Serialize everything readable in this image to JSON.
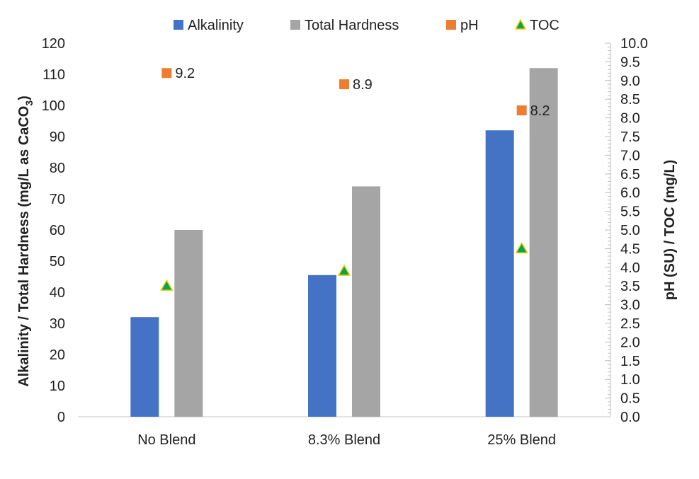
{
  "chart_data": {
    "type": "bar",
    "categories": [
      "No Blend",
      "8.3% Blend",
      "25% Blend"
    ],
    "series": [
      {
        "name": "Alkalinity",
        "kind": "bar",
        "axis": "left",
        "color": "#4472c4",
        "values": [
          32,
          45.5,
          92
        ]
      },
      {
        "name": "Total Hardness",
        "kind": "bar",
        "axis": "left",
        "color": "#a5a5a5",
        "values": [
          60,
          74,
          112
        ]
      },
      {
        "name": "pH",
        "kind": "marker",
        "shape": "square",
        "axis": "right",
        "color": "#ed7d31",
        "values": [
          9.2,
          8.9,
          8.2
        ],
        "labels": [
          "9.2",
          "8.9",
          "8.2"
        ]
      },
      {
        "name": "TOC",
        "kind": "marker",
        "shape": "triangle",
        "axis": "right",
        "color": "#00a651",
        "stroke": "#ffcc00",
        "values": [
          3.5,
          3.9,
          4.5
        ]
      }
    ],
    "ylabel_parts": [
      "Alkalinity / Total Hardness (mg/L as CaCO",
      "3",
      ")"
    ],
    "y2label": "pH (SU) / TOC (mg/L)",
    "ylim": [
      0,
      120
    ],
    "y2lim": [
      0,
      10
    ],
    "yticks": [
      "0",
      "10",
      "20",
      "30",
      "40",
      "50",
      "60",
      "70",
      "80",
      "90",
      "100",
      "110",
      "120"
    ],
    "y2ticks": [
      "0.0",
      "0.5",
      "1.0",
      "1.5",
      "2.0",
      "2.5",
      "3.0",
      "3.5",
      "4.0",
      "4.5",
      "5.0",
      "5.5",
      "6.0",
      "6.5",
      "7.0",
      "7.5",
      "8.0",
      "8.5",
      "9.0",
      "9.5",
      "10.0"
    ],
    "legend_position": "top",
    "grid": false
  }
}
